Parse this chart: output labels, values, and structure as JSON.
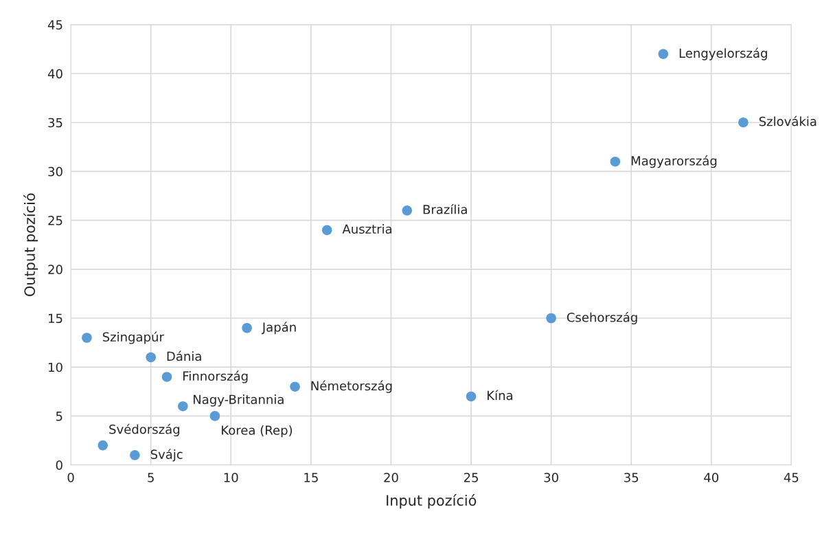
{
  "chart_data": {
    "type": "scatter",
    "xlabel": "Input pozíció",
    "ylabel": "Output pozíció",
    "x": [
      37,
      42,
      34,
      21,
      16,
      30,
      11,
      1,
      5,
      6,
      14,
      25,
      7,
      9,
      2,
      4
    ],
    "series": [
      {
        "color": "#5b9bd5",
        "values": [
          42,
          35,
          31,
          26,
          24,
          15,
          14,
          13,
          11,
          9,
          8,
          7,
          6,
          5,
          2,
          1
        ]
      }
    ],
    "xlim": [
      0,
      45
    ],
    "xticks": [
      0,
      5,
      10,
      15,
      20,
      25,
      30,
      35,
      40,
      45
    ],
    "ylim": [
      0,
      45
    ],
    "yticks": [
      0,
      5,
      10,
      15,
      20,
      25,
      30,
      35,
      40,
      45
    ],
    "grid": true,
    "marker": "circle",
    "legend": false,
    "annotations": [
      {
        "text": "Lengyelország",
        "x": 37,
        "y": 42
      },
      {
        "text": "Szlovákia",
        "x": 42,
        "y": 35
      },
      {
        "text": "Magyarország",
        "x": 34,
        "y": 31
      },
      {
        "text": "Brazília",
        "x": 21,
        "y": 26
      },
      {
        "text": "Ausztria",
        "x": 16,
        "y": 24
      },
      {
        "text": "Csehország",
        "x": 30,
        "y": 15
      },
      {
        "text": "Japán",
        "x": 11,
        "y": 14
      },
      {
        "text": "Szingapúr",
        "x": 1,
        "y": 13
      },
      {
        "text": "Dánia",
        "x": 5,
        "y": 11
      },
      {
        "text": "Finnország",
        "x": 6,
        "y": 9
      },
      {
        "text": "Németország",
        "x": 14,
        "y": 8
      },
      {
        "text": "Kína",
        "x": 25,
        "y": 7
      },
      {
        "text": "Nagy-Britannia",
        "x": 7,
        "y": 6
      },
      {
        "text": "Korea (Rep)",
        "x": 9,
        "y": 5
      },
      {
        "text": "Svédország",
        "x": 2,
        "y": 2
      },
      {
        "text": "Svájc",
        "x": 4,
        "y": 1
      }
    ]
  }
}
